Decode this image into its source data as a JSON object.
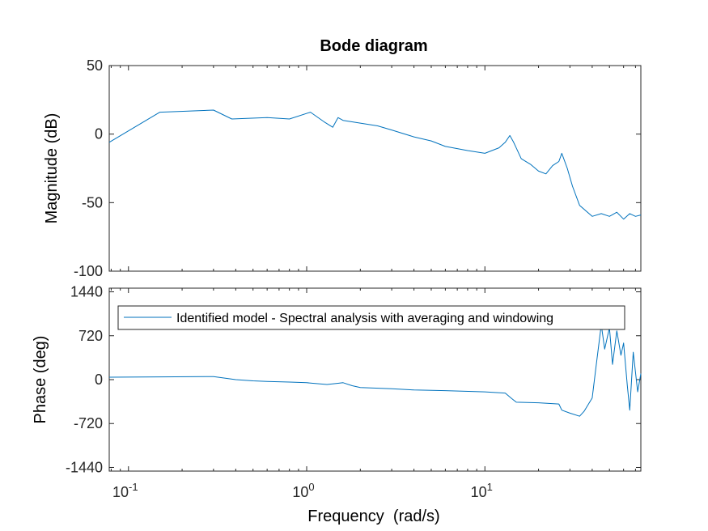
{
  "chart_data": [
    {
      "type": "line",
      "title": "Bode diagram",
      "ylabel": "Magnitude (dB)",
      "xlabel": "",
      "xscale": "log",
      "xlim": [
        0.078,
        75
      ],
      "ylim": [
        -100,
        50
      ],
      "yticks": [
        {
          "value": 50,
          "label": "50"
        },
        {
          "value": 0,
          "label": "0"
        },
        {
          "value": -50,
          "label": "-50"
        },
        {
          "value": -100,
          "label": "-100"
        }
      ],
      "grid": false,
      "series": [
        {
          "color": "#0072BD",
          "x": [
            0.078,
            0.15,
            0.3,
            0.38,
            0.6,
            0.8,
            1.05,
            1.25,
            1.4,
            1.5,
            1.6,
            2.0,
            2.5,
            3.0,
            4.0,
            5.0,
            6.0,
            8.0,
            10.0,
            12.0,
            13.0,
            13.8,
            14.5,
            16.0,
            18.0,
            20.0,
            22.0,
            24.0,
            26.0,
            27.0,
            29.0,
            31.0,
            34.0,
            40.0,
            45.0,
            50.0,
            55.0,
            60.0,
            65.0,
            70.0,
            75.0
          ],
          "y": [
            -6,
            16,
            17.5,
            11,
            12,
            11,
            16,
            9,
            5,
            12,
            10,
            8,
            6,
            3,
            -2,
            -5,
            -9,
            -12,
            -14,
            -10,
            -6,
            -1,
            -6,
            -18,
            -22,
            -27,
            -29,
            -23,
            -20,
            -14,
            -25,
            -38,
            -52,
            -60,
            -58,
            -60,
            -57,
            -62,
            -58,
            -60,
            -59
          ]
        }
      ]
    },
    {
      "type": "line",
      "title": "",
      "ylabel": "Phase (deg)",
      "xlabel": "Frequency  (rad/s)",
      "xscale": "log",
      "xlim": [
        0.078,
        75
      ],
      "ylim": [
        -1500,
        1500
      ],
      "yticks": [
        {
          "value": 1440,
          "label": "1440"
        },
        {
          "value": 720,
          "label": "720"
        },
        {
          "value": 0,
          "label": "0"
        },
        {
          "value": -720,
          "label": "-720"
        },
        {
          "value": -1440,
          "label": "-1440"
        }
      ],
      "xticks": [
        {
          "value": 0.1,
          "base": "10",
          "exp": "-1"
        },
        {
          "value": 1,
          "base": "10",
          "exp": "0"
        },
        {
          "value": 10,
          "base": "10",
          "exp": "1"
        }
      ],
      "grid": false,
      "legend": {
        "position": "top",
        "entries": [
          "Identified model - Spectral analysis with averaging and windowing"
        ]
      },
      "series": [
        {
          "name": "Identified model - Spectral analysis with averaging and windowing",
          "color": "#0072BD",
          "x": [
            0.078,
            0.15,
            0.3,
            0.4,
            0.5,
            0.6,
            0.8,
            1.0,
            1.3,
            1.5,
            1.6,
            1.8,
            2.0,
            3.0,
            4.0,
            6.0,
            10.0,
            13.0,
            14.0,
            15.0,
            20.0,
            26.0,
            27.0,
            30.0,
            34.0,
            36.0,
            40.0,
            42.0,
            45.0,
            47.0,
            50.0,
            52.0,
            55.0,
            58.0,
            60.0,
            63.0,
            65.0,
            68.0,
            72.0,
            75.0
          ],
          "y": [
            40,
            45,
            50,
            0,
            -20,
            -30,
            -40,
            -50,
            -80,
            -60,
            -50,
            -100,
            -130,
            -150,
            -170,
            -180,
            -200,
            -220,
            -300,
            -370,
            -380,
            -400,
            -500,
            -550,
            -600,
            -520,
            -300,
            200,
            900,
            500,
            850,
            250,
            800,
            400,
            600,
            -100,
            -500,
            450,
            -200,
            100
          ]
        }
      ]
    }
  ]
}
